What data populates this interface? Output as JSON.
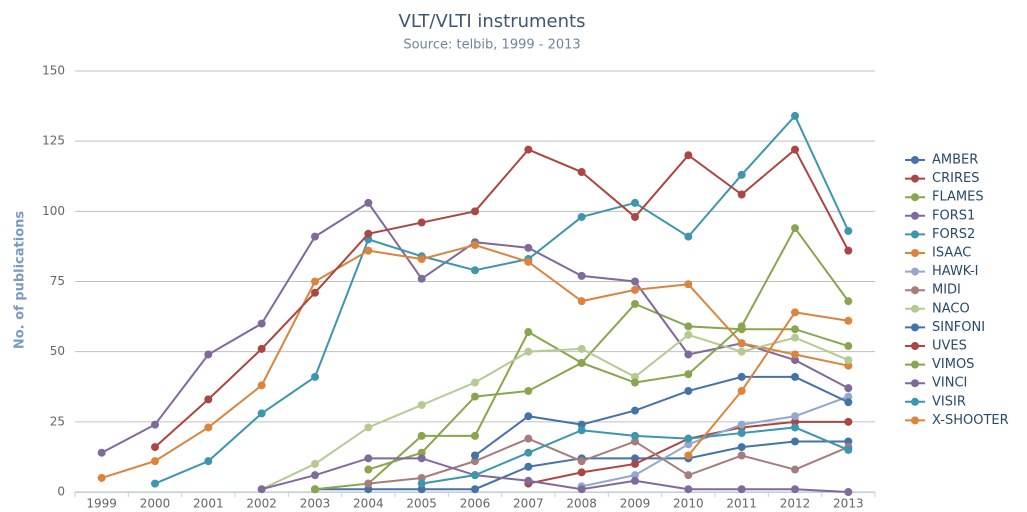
{
  "chart_data": {
    "type": "line",
    "title": "VLT/VLTI instruments",
    "subtitle": "Source: telbib, 1999 - 2013",
    "y_label": "No. of publications",
    "categories": [
      "1999",
      "2000",
      "2001",
      "2002",
      "2003",
      "2004",
      "2005",
      "2006",
      "2007",
      "2008",
      "2009",
      "2010",
      "2011",
      "2012",
      "2013"
    ],
    "ylim": [
      0,
      150
    ],
    "yticks": [
      0,
      25,
      50,
      75,
      100,
      125,
      150
    ],
    "grid": true,
    "legend": "right",
    "series": [
      {
        "name": "AMBER",
        "color": "#4572A7",
        "values": [
          null,
          null,
          null,
          null,
          1,
          1,
          1,
          1,
          9,
          12,
          12,
          12,
          16,
          18,
          18
        ]
      },
      {
        "name": "CRIRES",
        "color": "#AA4643",
        "values": [
          null,
          null,
          null,
          null,
          null,
          null,
          null,
          null,
          3,
          7,
          10,
          19,
          23,
          25,
          25
        ]
      },
      {
        "name": "FLAMES",
        "color": "#89A54E",
        "values": [
          null,
          null,
          null,
          null,
          1,
          3,
          20,
          20,
          57,
          46,
          67,
          59,
          58,
          58,
          52
        ]
      },
      {
        "name": "FORS1",
        "color": "#80699B",
        "values": [
          14,
          24,
          49,
          60,
          91,
          103,
          76,
          89,
          87,
          77,
          75,
          49,
          53,
          47,
          37
        ]
      },
      {
        "name": "FORS2",
        "color": "#3D96AE",
        "values": [
          null,
          3,
          11,
          28,
          41,
          90,
          84,
          79,
          83,
          98,
          103,
          91,
          113,
          134,
          93
        ]
      },
      {
        "name": "ISAAC",
        "color": "#DB843D",
        "values": [
          5,
          11,
          23,
          38,
          75,
          86,
          83,
          88,
          82,
          68,
          72,
          74,
          53,
          49,
          45
        ]
      },
      {
        "name": "HAWK-I",
        "color": "#92A8CD",
        "values": [
          null,
          null,
          null,
          null,
          null,
          null,
          null,
          null,
          null,
          2,
          6,
          17,
          24,
          27,
          34
        ]
      },
      {
        "name": "MIDI",
        "color": "#A47D7C",
        "values": [
          null,
          null,
          null,
          null,
          null,
          3,
          5,
          11,
          19,
          11,
          18,
          6,
          13,
          8,
          16
        ]
      },
      {
        "name": "NACO",
        "color": "#B5CA92",
        "values": [
          null,
          null,
          null,
          1,
          10,
          23,
          31,
          39,
          50,
          51,
          41,
          56,
          50,
          55,
          47
        ]
      },
      {
        "name": "SINFONI",
        "color": "#4572A7",
        "values": [
          null,
          null,
          null,
          null,
          null,
          null,
          null,
          13,
          27,
          24,
          29,
          36,
          41,
          41,
          32
        ]
      },
      {
        "name": "UVES",
        "color": "#AA4643",
        "values": [
          null,
          16,
          33,
          51,
          71,
          92,
          96,
          100,
          122,
          114,
          98,
          120,
          106,
          122,
          86
        ]
      },
      {
        "name": "VIMOS",
        "color": "#89A54E",
        "values": [
          null,
          null,
          null,
          null,
          null,
          8,
          14,
          34,
          36,
          46,
          39,
          42,
          59,
          94,
          68
        ]
      },
      {
        "name": "VINCI",
        "color": "#80699B",
        "values": [
          null,
          null,
          null,
          1,
          6,
          12,
          12,
          6,
          4,
          1,
          4,
          1,
          1,
          1,
          0
        ]
      },
      {
        "name": "VISIR",
        "color": "#3D96AE",
        "values": [
          null,
          null,
          null,
          null,
          null,
          null,
          3,
          6,
          14,
          22,
          20,
          19,
          21,
          23,
          15
        ]
      },
      {
        "name": "X-SHOOTER",
        "color": "#DB843D",
        "values": [
          null,
          null,
          null,
          null,
          null,
          null,
          null,
          null,
          null,
          null,
          null,
          13,
          36,
          64,
          61
        ]
      }
    ]
  }
}
